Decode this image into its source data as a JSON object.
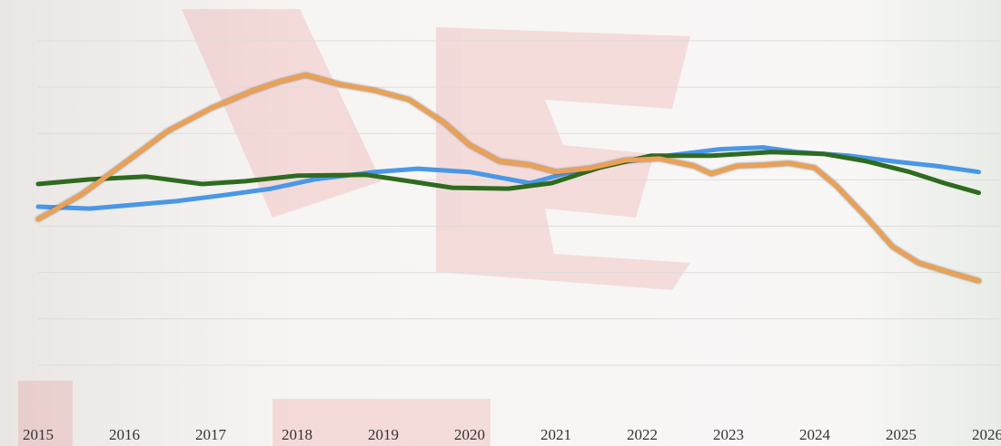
{
  "chart_data": {
    "type": "line",
    "x": null,
    "xlim": [
      2015,
      2026
    ],
    "xticks": [
      2015,
      2016,
      2017,
      2018,
      2019,
      2020,
      2021,
      2022,
      2023,
      2024,
      2025,
      2026
    ],
    "ylim": [
      0,
      8
    ],
    "yticks": [
      1,
      2,
      3,
      4,
      5,
      6,
      7,
      8
    ],
    "grid": true,
    "series": [
      {
        "color": "#4a97e8",
        "x": [
          2015.0,
          2015.6,
          2016.1,
          2016.6,
          2017.2,
          2017.7,
          2018.2,
          2018.9,
          2019.4,
          2020.0,
          2020.7,
          2021.1,
          2021.7,
          2022.2,
          2022.9,
          2023.4,
          2023.8,
          2024.4,
          2024.9,
          2025.4,
          2025.9
        ],
        "values": [
          4.42,
          4.38,
          4.46,
          4.54,
          4.68,
          4.81,
          5.01,
          5.17,
          5.24,
          5.17,
          4.93,
          5.13,
          5.36,
          5.5,
          5.66,
          5.7,
          5.6,
          5.52,
          5.4,
          5.3,
          5.17
        ]
      },
      {
        "color": "#2e6b1f",
        "x": [
          2015.0,
          2015.6,
          2016.25,
          2016.9,
          2017.4,
          2018.0,
          2018.8,
          2019.3,
          2019.8,
          2020.45,
          2020.95,
          2021.5,
          2022.1,
          2022.8,
          2023.5,
          2024.1,
          2024.6,
          2025.1,
          2025.5,
          2025.9
        ],
        "values": [
          4.91,
          5.01,
          5.07,
          4.91,
          4.97,
          5.09,
          5.11,
          4.97,
          4.83,
          4.81,
          4.93,
          5.26,
          5.52,
          5.52,
          5.6,
          5.56,
          5.4,
          5.17,
          4.93,
          4.72
        ]
      },
      {
        "color": "#eaa154",
        "x": [
          2015.0,
          2015.5,
          2016.0,
          2016.5,
          2017.0,
          2017.5,
          2017.8,
          2018.1,
          2018.5,
          2018.9,
          2019.3,
          2019.7,
          2020.0,
          2020.35,
          2020.7,
          2021.0,
          2021.4,
          2021.8,
          2022.2,
          2022.6,
          2022.8,
          2023.1,
          2023.4,
          2023.7,
          2024.0,
          2024.25,
          2024.6,
          2024.9,
          2025.2,
          2025.6,
          2025.9
        ],
        "values": [
          4.15,
          4.68,
          5.36,
          6.05,
          6.54,
          6.93,
          7.12,
          7.26,
          7.06,
          6.93,
          6.73,
          6.24,
          5.75,
          5.4,
          5.32,
          5.17,
          5.25,
          5.42,
          5.46,
          5.3,
          5.13,
          5.3,
          5.32,
          5.36,
          5.26,
          4.87,
          4.19,
          3.56,
          3.21,
          2.98,
          2.82
        ]
      }
    ]
  }
}
